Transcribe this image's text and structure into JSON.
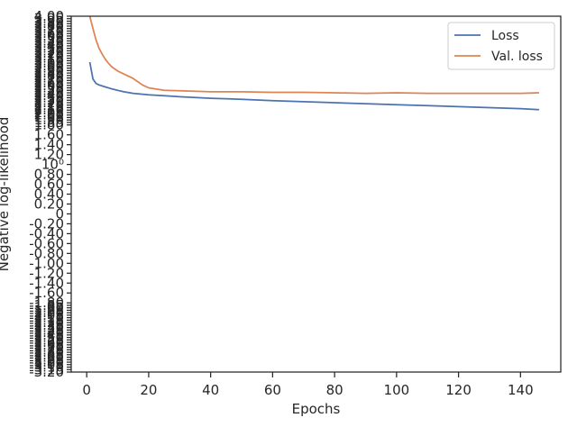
{
  "chart_data": {
    "type": "line",
    "xlabel": "Epochs",
    "ylabel": "Negative log-likelihood",
    "xlim": [
      -5,
      153
    ],
    "ylim": [
      -3.2,
      4.0
    ],
    "legend": "top-right",
    "grid": false,
    "x_ticks": [
      "0",
      "20",
      "40",
      "60",
      "80",
      "100",
      "120",
      "140"
    ],
    "x_tick_values": [
      0,
      20,
      40,
      60,
      80,
      100,
      120,
      140
    ],
    "y_ticks_readable": [
      {
        "label": "1.80",
        "value": 1.8
      },
      {
        "label": "1.60",
        "value": 1.6
      },
      {
        "label": "1.40",
        "value": 1.4
      },
      {
        "label": "1.20",
        "value": 1.2
      },
      {
        "label": "10⁰",
        "value": 1.0
      },
      {
        "label": "0.80",
        "value": 0.8
      },
      {
        "label": "0.60",
        "value": 0.6
      },
      {
        "label": "0.40",
        "value": 0.4
      },
      {
        "label": "0.20",
        "value": 0.2
      },
      {
        "label": "0",
        "value": 0.0
      },
      {
        "label": "-0.20",
        "value": -0.2
      },
      {
        "label": "-0.40",
        "value": -0.4
      },
      {
        "label": "-0.60",
        "value": -0.6
      },
      {
        "label": "-0.80",
        "value": -0.8
      },
      {
        "label": "-1.00",
        "value": -1.0
      },
      {
        "label": "-1.20",
        "value": -1.2
      },
      {
        "label": "-1.40",
        "value": -1.4
      },
      {
        "label": "-1.60",
        "value": -1.6
      },
      {
        "label": "-1.80",
        "value": -1.8
      }
    ],
    "series": [
      {
        "name": "Loss",
        "color": "#4c72b0",
        "x": [
          1,
          2,
          3,
          4,
          6,
          8,
          10,
          12,
          15,
          20,
          25,
          30,
          40,
          50,
          60,
          70,
          80,
          90,
          100,
          110,
          120,
          130,
          140,
          146
        ],
        "y": [
          3.07,
          2.73,
          2.64,
          2.61,
          2.57,
          2.53,
          2.5,
          2.47,
          2.44,
          2.41,
          2.39,
          2.37,
          2.34,
          2.32,
          2.29,
          2.27,
          2.25,
          2.23,
          2.21,
          2.19,
          2.17,
          2.15,
          2.13,
          2.11
        ]
      },
      {
        "name": "Val. loss",
        "color": "#dd8452",
        "x": [
          1,
          2,
          3,
          4,
          5,
          6,
          7,
          8,
          10,
          12,
          15,
          18,
          20,
          25,
          30,
          40,
          50,
          60,
          70,
          80,
          90,
          100,
          110,
          120,
          130,
          140,
          146
        ],
        "y": [
          4.0,
          3.75,
          3.52,
          3.35,
          3.23,
          3.13,
          3.05,
          2.98,
          2.89,
          2.83,
          2.74,
          2.61,
          2.55,
          2.5,
          2.49,
          2.47,
          2.47,
          2.46,
          2.46,
          2.45,
          2.44,
          2.45,
          2.44,
          2.44,
          2.44,
          2.44,
          2.45
        ]
      }
    ]
  }
}
